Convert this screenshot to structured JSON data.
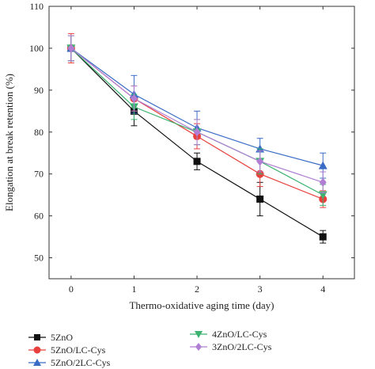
{
  "chart_data": {
    "type": "line",
    "title": "",
    "xlabel": "Thermo-oxidative aging time (day)",
    "ylabel": "Elongation at break retention (%)",
    "x": [
      0,
      1,
      2,
      3,
      4
    ],
    "xlim": [
      -0.35,
      4.5
    ],
    "ylim": [
      45,
      110
    ],
    "xticks": [
      0,
      1,
      2,
      3,
      4
    ],
    "yticks": [
      50,
      60,
      70,
      80,
      90,
      100,
      110
    ],
    "grid": false,
    "legend_position": "bottom",
    "series": [
      {
        "name": "5ZnO",
        "color": "#111111",
        "marker": "square",
        "values": [
          100,
          85,
          73,
          64,
          55
        ],
        "errors": [
          3,
          3.5,
          2,
          4,
          1.5
        ]
      },
      {
        "name": "5ZnO/LC-Cys",
        "color": "#e8403c",
        "marker": "circle",
        "values": [
          100,
          88,
          79,
          70,
          64
        ],
        "errors": [
          3.5,
          3,
          3,
          3,
          2
        ]
      },
      {
        "name": "5ZnO/2LC-Cys",
        "color": "#3a6cc6",
        "marker": "triangle-up",
        "values": [
          100,
          89,
          81,
          76,
          72
        ],
        "errors": [
          3,
          4.5,
          4,
          2.5,
          3
        ]
      },
      {
        "name": "4ZnO/LC-Cys",
        "color": "#3cb371",
        "marker": "triangle-down",
        "values": [
          100,
          86,
          80,
          73,
          65
        ],
        "errors": [
          3,
          3,
          3,
          3,
          2.5
        ]
      },
      {
        "name": "3ZnO/2LC-Cys",
        "color": "#b07fd4",
        "marker": "diamond",
        "values": [
          100,
          88,
          80,
          73,
          68
        ],
        "errors": [
          3,
          3,
          3,
          2.5,
          2.5
        ]
      }
    ]
  }
}
